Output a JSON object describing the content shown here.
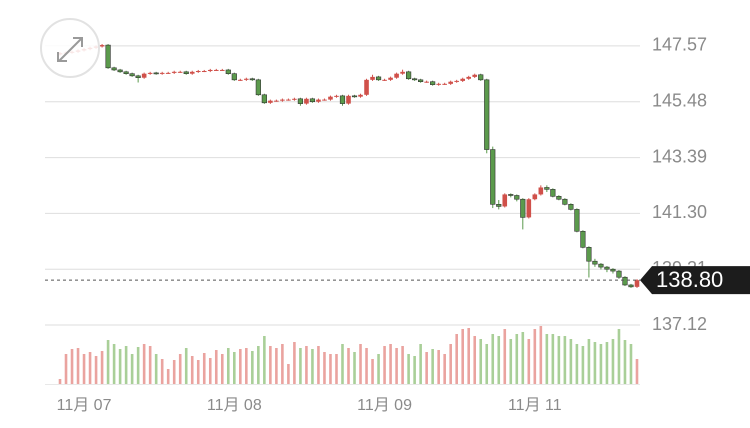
{
  "chart_data": {
    "type": "candlestick",
    "categories": [
      null,
      null,
      null,
      null,
      "11月 07",
      null,
      null,
      null,
      null,
      null,
      null,
      null,
      null,
      null,
      null,
      null,
      null,
      null,
      null,
      null,
      null,
      null,
      null,
      null,
      null,
      null,
      null,
      null,
      null,
      "11月 08",
      null,
      null,
      null,
      null,
      null,
      null,
      null,
      null,
      null,
      null,
      null,
      null,
      null,
      null,
      null,
      null,
      null,
      null,
      null,
      null,
      null,
      null,
      null,
      null,
      "11月 09",
      null,
      null,
      null,
      null,
      null,
      null,
      null,
      null,
      null,
      null,
      null,
      null,
      null,
      null,
      null,
      null,
      null,
      null,
      null,
      null,
      null,
      null,
      null,
      null,
      "11月 11",
      null,
      null,
      null,
      null,
      null,
      null,
      null,
      null,
      null,
      null,
      null,
      null,
      null,
      null,
      null,
      null,
      null
    ],
    "open": [
      147.25,
      147.3,
      147.32,
      147.35,
      147.4,
      147.45,
      147.5,
      147.55,
      147.6,
      146.75,
      146.67,
      146.6,
      146.53,
      146.45,
      146.38,
      146.53,
      146.56,
      146.53,
      146.56,
      146.56,
      146.6,
      146.6,
      146.53,
      146.6,
      146.63,
      146.63,
      146.67,
      146.67,
      146.67,
      146.53,
      146.3,
      146.3,
      146.34,
      146.3,
      145.74,
      145.44,
      145.52,
      145.52,
      145.56,
      145.56,
      145.59,
      145.41,
      145.59,
      145.48,
      145.56,
      145.56,
      145.67,
      145.7,
      145.41,
      145.7,
      145.67,
      145.74,
      146.3,
      146.41,
      146.3,
      146.3,
      146.38,
      146.53,
      146.6,
      146.34,
      146.3,
      146.23,
      146.23,
      146.12,
      146.15,
      146.15,
      146.23,
      146.26,
      146.34,
      146.41,
      146.49,
      146.3,
      143.69,
      141.64,
      141.56,
      142.01,
      141.97,
      141.83,
      141.15,
      141.83,
      142.01,
      142.27,
      142.2,
      141.94,
      141.83,
      141.64,
      141.45,
      140.63,
      140.03,
      139.51,
      139.4,
      139.29,
      139.21,
      139.14,
      138.91,
      138.62,
      138.55
    ],
    "high": [
      147.34,
      147.36,
      147.39,
      147.44,
      147.49,
      147.54,
      147.59,
      147.64,
      147.64,
      146.79,
      146.71,
      146.64,
      146.57,
      146.49,
      146.57,
      146.6,
      146.6,
      146.6,
      146.6,
      146.64,
      146.64,
      146.64,
      146.64,
      146.67,
      146.67,
      146.71,
      146.71,
      146.71,
      146.71,
      146.57,
      146.34,
      146.38,
      146.38,
      146.34,
      145.78,
      145.56,
      145.56,
      145.6,
      145.6,
      145.63,
      145.63,
      145.63,
      145.63,
      145.6,
      145.6,
      145.71,
      145.74,
      145.74,
      145.74,
      145.74,
      145.78,
      146.34,
      146.49,
      146.45,
      146.34,
      146.42,
      146.57,
      146.68,
      146.64,
      146.38,
      146.34,
      146.27,
      146.27,
      146.19,
      146.19,
      146.27,
      146.3,
      146.38,
      146.45,
      146.53,
      146.53,
      146.34,
      143.8,
      141.8,
      142.05,
      142.05,
      142.01,
      141.87,
      141.87,
      142.05,
      142.35,
      142.35,
      142.24,
      141.98,
      141.87,
      141.68,
      141.49,
      140.67,
      140.07,
      139.6,
      139.44,
      139.33,
      139.25,
      139.18,
      138.95,
      138.66,
      138.84
    ],
    "low": [
      147.21,
      147.26,
      147.28,
      147.31,
      147.36,
      147.41,
      147.46,
      147.51,
      146.71,
      146.63,
      146.56,
      146.49,
      146.41,
      146.2,
      146.34,
      146.49,
      146.49,
      146.49,
      146.52,
      146.52,
      146.56,
      146.49,
      146.49,
      146.56,
      146.59,
      146.59,
      146.63,
      146.63,
      146.49,
      146.26,
      146.26,
      146.26,
      146.26,
      145.7,
      145.4,
      145.4,
      145.48,
      145.48,
      145.52,
      145.52,
      145.33,
      145.37,
      145.44,
      145.44,
      145.52,
      145.52,
      145.63,
      145.33,
      145.37,
      145.63,
      145.63,
      145.7,
      146.26,
      146.26,
      146.26,
      146.26,
      146.34,
      146.49,
      146.3,
      146.26,
      146.19,
      146.19,
      146.08,
      146.08,
      146.11,
      146.11,
      146.19,
      146.22,
      146.3,
      146.37,
      146.26,
      143.55,
      141.5,
      141.45,
      141.52,
      141.9,
      141.75,
      140.7,
      141.11,
      141.79,
      141.97,
      142.1,
      141.9,
      141.79,
      141.6,
      141.41,
      140.59,
      139.99,
      138.9,
      139.3,
      139.2,
      139.1,
      139.05,
      138.85,
      138.58,
      138.51,
      138.51
    ],
    "close": [
      147.3,
      147.32,
      147.35,
      147.4,
      147.45,
      147.5,
      147.55,
      147.6,
      146.75,
      146.67,
      146.6,
      146.53,
      146.45,
      146.38,
      146.53,
      146.56,
      146.53,
      146.56,
      146.56,
      146.6,
      146.6,
      146.53,
      146.6,
      146.63,
      146.63,
      146.67,
      146.67,
      146.67,
      146.53,
      146.3,
      146.3,
      146.34,
      146.3,
      145.74,
      145.44,
      145.52,
      145.52,
      145.56,
      145.56,
      145.59,
      145.41,
      145.59,
      145.48,
      145.56,
      145.56,
      145.67,
      145.7,
      145.41,
      145.7,
      145.67,
      145.74,
      146.3,
      146.41,
      146.3,
      146.3,
      146.38,
      146.53,
      146.6,
      146.34,
      146.3,
      146.23,
      146.23,
      146.12,
      146.15,
      146.15,
      146.23,
      146.26,
      146.34,
      146.41,
      146.49,
      146.3,
      143.69,
      141.64,
      141.56,
      142.01,
      141.97,
      141.83,
      141.15,
      141.83,
      142.01,
      142.27,
      142.2,
      141.94,
      141.83,
      141.64,
      141.45,
      140.63,
      140.03,
      139.51,
      139.4,
      139.29,
      139.21,
      139.14,
      138.91,
      138.62,
      138.55,
      138.8
    ],
    "volume": [
      5,
      30,
      35,
      36,
      30,
      32,
      28,
      33,
      44,
      40,
      35,
      38,
      30,
      37,
      40,
      38,
      30,
      25,
      15,
      24,
      30,
      36,
      28,
      24,
      31,
      26,
      34,
      30,
      36,
      32,
      35,
      36,
      33,
      38,
      48,
      38,
      36,
      40,
      20,
      42,
      36,
      38,
      35,
      38,
      32,
      30,
      30,
      40,
      36,
      32,
      40,
      36,
      25,
      30,
      38,
      40,
      36,
      38,
      30,
      28,
      40,
      32,
      35,
      34,
      30,
      40,
      50,
      55,
      56,
      48,
      45,
      40,
      50,
      48,
      55,
      45,
      50,
      52,
      45,
      55,
      58,
      50,
      50,
      48,
      48,
      45,
      40,
      38,
      45,
      42,
      40,
      42,
      45,
      55,
      44,
      40,
      25
    ],
    "up_color": "#d0504a",
    "down_color": "#5b9a4c",
    "up_volume_color": "#eaa39f",
    "down_volume_color": "#a9cf98",
    "ylim": [
      136.56,
      148.54
    ],
    "yticks": [
      147.57,
      145.48,
      143.39,
      {
        "value": 141.3,
        "label": "141.30"
      },
      139.21,
      137.12
    ],
    "volume_ylim": [
      0,
      80
    ],
    "grid": true,
    "last_price": {
      "value": 138.8,
      "label": "138.80"
    }
  }
}
